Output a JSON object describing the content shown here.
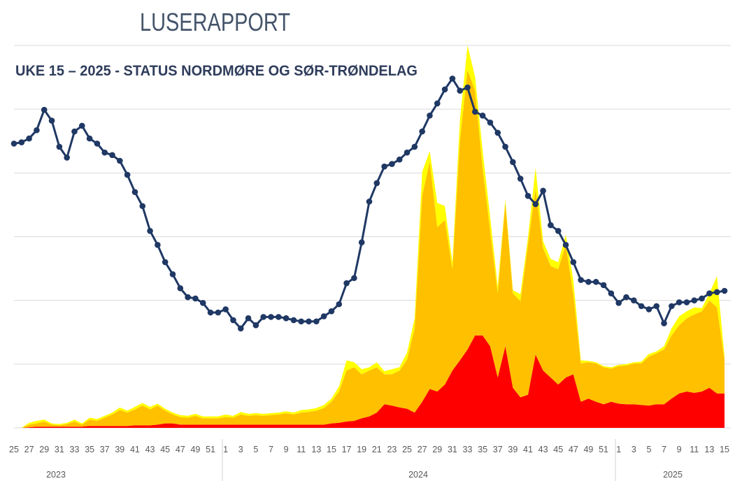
{
  "chart_data": {
    "type": "area",
    "title": "LUSERAPPORT",
    "subtitle": "UKE  15 – 2025 - STATUS NORDMØRE OG SØR-TRØNDELAG",
    "categories": [
      "25",
      null,
      "27",
      null,
      "29",
      null,
      "31",
      null,
      "33",
      null,
      "35",
      null,
      "37",
      null,
      "39",
      null,
      "41",
      null,
      "43",
      null,
      "45",
      null,
      "47",
      null,
      "49",
      null,
      "51",
      null,
      "1",
      null,
      "3",
      null,
      "5",
      null,
      "7",
      null,
      "9",
      null,
      "11",
      null,
      "13",
      null,
      "15",
      null,
      "17",
      null,
      "19",
      null,
      "21",
      null,
      "23",
      null,
      "25",
      null,
      "27",
      null,
      "29",
      null,
      "31",
      null,
      "33",
      null,
      "35",
      null,
      "37",
      null,
      "39",
      null,
      "41",
      null,
      "43",
      null,
      "45",
      null,
      "47",
      null,
      "49",
      null,
      "51",
      null,
      "1",
      null,
      "3",
      null,
      "5",
      null,
      "7",
      null,
      "9",
      null,
      "11",
      null,
      "13",
      null,
      "15"
    ],
    "years": [
      "2023",
      "2024",
      "2025"
    ],
    "ylim": [
      0,
      60
    ],
    "yticks": [
      0,
      10,
      20,
      30,
      40,
      50,
      60
    ],
    "grid": true,
    "stacked": true,
    "series": [
      {
        "type": "area",
        "color": "#ff0000",
        "values": [
          0,
          0,
          0.1,
          0.2,
          0.2,
          0.2,
          0.2,
          0.2,
          0.2,
          0.2,
          0.3,
          0.3,
          0.3,
          0.3,
          0.3,
          0.3,
          0.4,
          0.4,
          0.4,
          0.5,
          0.7,
          0.7,
          0.5,
          0.5,
          0.5,
          0.5,
          0.5,
          0.5,
          0.5,
          0.5,
          0.5,
          0.5,
          0.5,
          0.5,
          0.5,
          0.5,
          0.5,
          0.5,
          0.5,
          0.5,
          0.5,
          0.5,
          0.7,
          0.8,
          1.0,
          1.1,
          1.5,
          1.8,
          2.4,
          3.7,
          3.5,
          3.2,
          3.0,
          2.4,
          4.1,
          6.1,
          5.7,
          6.8,
          9.0,
          10.6,
          12.3,
          14.5,
          14.5,
          12.8,
          7.9,
          12.8,
          6.3,
          4.8,
          5.2,
          11.5,
          9.0,
          7.9,
          6.8,
          7.9,
          8.4,
          4.1,
          4.6,
          4.1,
          3.7,
          4.1,
          3.8,
          3.7,
          3.7,
          3.6,
          3.5,
          3.7,
          3.7,
          4.6,
          5.4,
          5.7,
          5.5,
          5.7,
          6.3,
          5.4,
          5.4
        ]
      },
      {
        "type": "area",
        "color": "#ffc000",
        "values": [
          0,
          0,
          0.4,
          0.5,
          0.8,
          0.3,
          0.2,
          0.4,
          0.8,
          0.3,
          1.0,
          0.8,
          1.3,
          1.8,
          2.5,
          2.1,
          2.5,
          3.1,
          2.5,
          3.0,
          2.0,
          1.4,
          1.2,
          1.1,
          1.4,
          1.0,
          1.0,
          1.0,
          1.2,
          1.1,
          1.6,
          1.4,
          1.5,
          1.4,
          1.5,
          1.6,
          1.8,
          1.6,
          1.9,
          2.0,
          2.2,
          2.6,
          3.4,
          4.9,
          8.0,
          8.4,
          6.9,
          7.2,
          7.1,
          4.7,
          4.9,
          5.8,
          7.7,
          13.2,
          32.3,
          35.7,
          25.8,
          25.8,
          15.9,
          34.5,
          43.9,
          38.4,
          26.3,
          18.1,
          13.2,
          22.5,
          14.8,
          15.1,
          23.6,
          26.0,
          19.2,
          17.5,
          18.1,
          20.8,
          12.6,
          6.0,
          5.7,
          6.0,
          5.8,
          5.2,
          5.9,
          6.1,
          6.4,
          6.5,
          7.7,
          8.0,
          8.6,
          9.9,
          10.7,
          11.5,
          12.3,
          12.6,
          13.7,
          13.5,
          5.3
        ]
      },
      {
        "type": "area",
        "color": "#ffff00",
        "values": [
          0,
          0,
          0.3,
          0.4,
          0.3,
          0.2,
          0.2,
          0.2,
          0.3,
          0.2,
          0.3,
          0.3,
          0.3,
          0.3,
          0.4,
          0.3,
          0.4,
          0.4,
          0.4,
          0.3,
          0.3,
          0.3,
          0.3,
          0.3,
          0.3,
          0.3,
          0.3,
          0.3,
          0.4,
          0.3,
          0.4,
          0.3,
          0.3,
          0.3,
          0.3,
          0.3,
          0.3,
          0.3,
          0.4,
          0.4,
          0.4,
          0.5,
          0.5,
          0.8,
          1.6,
          0.8,
          0.8,
          0.5,
          0.8,
          0.5,
          0.8,
          0.5,
          1.1,
          1.6,
          3.8,
          1.6,
          3.8,
          2.2,
          1.1,
          3.3,
          3.8,
          2.2,
          2.7,
          2.2,
          1.1,
          0.5,
          0.5,
          1.1,
          1.1,
          3.3,
          1.1,
          1.1,
          1.1,
          1.6,
          2.2,
          0.5,
          0.2,
          0.2,
          0.2,
          0.2,
          0.2,
          0.2,
          0.2,
          0.3,
          0.4,
          0.3,
          0.5,
          1.1,
          1.4,
          1.1,
          1.1,
          0.5,
          1.1,
          4.9,
          0.5
        ]
      },
      {
        "type": "line",
        "color": "#1f3864",
        "values": [
          44.6,
          44.8,
          45.4,
          46.7,
          49.9,
          48.2,
          44.1,
          42.4,
          46.5,
          47.4,
          45.4,
          44.6,
          43.2,
          42.8,
          41.9,
          39.7,
          37.0,
          34.8,
          30.9,
          28.7,
          26.0,
          24.1,
          21.9,
          20.5,
          20.3,
          19.6,
          18.1,
          18.1,
          18.6,
          16.9,
          15.6,
          17.2,
          16.1,
          17.4,
          17.4,
          17.4,
          17.2,
          16.9,
          16.7,
          16.7,
          16.7,
          17.5,
          18.3,
          19.4,
          22.7,
          23.5,
          29.1,
          35.5,
          38.4,
          41.0,
          41.4,
          42.1,
          43.2,
          44.1,
          46.5,
          49.0,
          50.9,
          53.1,
          54.8,
          52.9,
          53.4,
          49.6,
          49.0,
          47.9,
          46.3,
          44.1,
          41.7,
          39.1,
          36.4,
          35.1,
          37.2,
          31.8,
          30.9,
          28.7,
          26.0,
          23.2,
          22.9,
          22.9,
          22.4,
          21.1,
          19.6,
          20.5,
          20.0,
          19.1,
          18.6,
          19.1,
          16.4,
          19.1,
          19.7,
          19.7,
          20.0,
          20.3,
          21.1,
          21.3,
          21.5
        ]
      }
    ]
  }
}
